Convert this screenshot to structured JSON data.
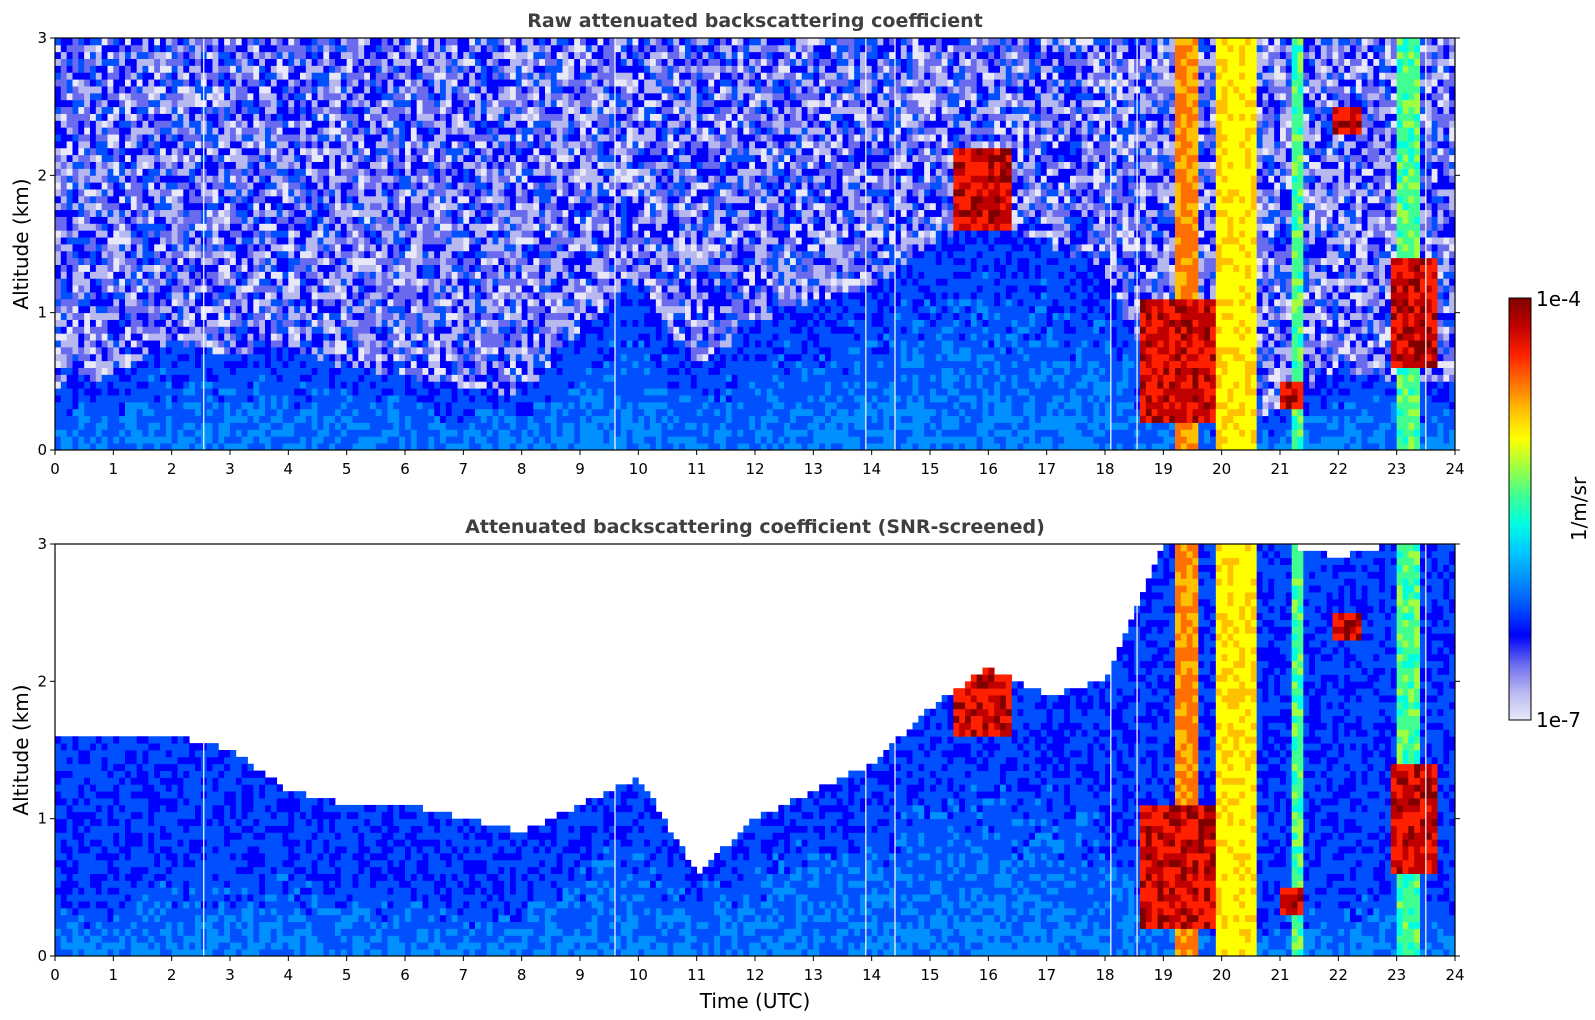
{
  "colors": {
    "colormap": [
      "#e8e8f8",
      "#b8b8f0",
      "#6a6aee",
      "#0000ff",
      "#0050ff",
      "#0090ff",
      "#00c8ff",
      "#00ffe0",
      "#40ff90",
      "#a0ff40",
      "#ffff00",
      "#ffc000",
      "#ff7000",
      "#ff2000",
      "#c00000",
      "#800000"
    ],
    "background": "#ffffff",
    "title": "#3f3f3f"
  },
  "colorbar": {
    "max_label": "1e-4",
    "min_label": "1e-7",
    "units_label": "1/m/sr",
    "scale": "log",
    "range": [
      1e-07,
      0.0001
    ]
  },
  "chart_data": [
    {
      "type": "heatmap",
      "title": "Raw attenuated backscattering coefficient",
      "xlabel": "",
      "ylabel": "Altitude (km)",
      "xlim": [
        0,
        24
      ],
      "ylim": [
        0,
        3
      ],
      "xticks": [
        "0",
        "1",
        "2",
        "3",
        "4",
        "5",
        "6",
        "7",
        "8",
        "9",
        "10",
        "11",
        "12",
        "13",
        "14",
        "15",
        "16",
        "17",
        "18",
        "19",
        "20",
        "21",
        "22",
        "23",
        "24"
      ],
      "yticks": [
        "0",
        "1",
        "2",
        "3"
      ],
      "x_unit": "Time (UTC) hours",
      "y_unit": "km",
      "screened": false,
      "boundary_layer_top_km": [
        [
          0,
          0.45
        ],
        [
          1,
          0.55
        ],
        [
          2,
          0.8
        ],
        [
          3,
          0.7
        ],
        [
          4,
          0.75
        ],
        [
          5,
          0.6
        ],
        [
          6,
          0.55
        ],
        [
          7,
          0.45
        ],
        [
          8,
          0.4
        ],
        [
          9,
          0.9
        ],
        [
          10,
          1.2
        ],
        [
          11,
          0.6
        ],
        [
          12,
          0.9
        ],
        [
          13,
          1.1
        ],
        [
          14,
          1.2
        ],
        [
          15,
          1.5
        ],
        [
          16,
          1.7
        ],
        [
          17,
          1.5
        ],
        [
          18,
          1.3
        ],
        [
          19,
          0.3
        ],
        [
          20,
          0.2
        ],
        [
          21,
          0.3
        ],
        [
          22,
          0.6
        ],
        [
          23,
          0.5
        ],
        [
          24,
          0.5
        ]
      ],
      "cloud_layers": [
        {
          "t": [
            15.4,
            16.4
          ],
          "alt_km": [
            1.6,
            2.2
          ],
          "level": "high"
        },
        {
          "t": [
            18.6,
            19.9
          ],
          "alt_km": [
            0.2,
            1.1
          ],
          "level": "high"
        },
        {
          "t": [
            21.0,
            21.4
          ],
          "alt_km": [
            0.3,
            0.5
          ],
          "level": "high"
        },
        {
          "t": [
            21.9,
            22.4
          ],
          "alt_km": [
            2.3,
            2.5
          ],
          "level": "high"
        },
        {
          "t": [
            22.9,
            23.7
          ],
          "alt_km": [
            0.6,
            1.4
          ],
          "level": "high"
        }
      ],
      "precipitation_columns": [
        {
          "t": [
            19.2,
            19.6
          ],
          "level": "very-high"
        },
        {
          "t": [
            19.9,
            20.6
          ],
          "level": "high"
        },
        {
          "t": [
            21.2,
            21.4
          ],
          "level": "medium"
        },
        {
          "t": [
            23.0,
            23.4
          ],
          "level": "medium"
        }
      ],
      "data_gaps_utc": [
        2.55,
        9.6,
        13.9,
        14.4,
        18.1,
        18.55,
        23.5
      ]
    },
    {
      "type": "heatmap",
      "title": "Attenuated backscattering coefficient (SNR-screened)",
      "xlabel": "Time (UTC)",
      "ylabel": "Altitude (km)",
      "xlim": [
        0,
        24
      ],
      "ylim": [
        0,
        3
      ],
      "xticks": [
        "0",
        "1",
        "2",
        "3",
        "4",
        "5",
        "6",
        "7",
        "8",
        "9",
        "10",
        "11",
        "12",
        "13",
        "14",
        "15",
        "16",
        "17",
        "18",
        "19",
        "20",
        "21",
        "22",
        "23",
        "24"
      ],
      "yticks": [
        "0",
        "1",
        "2",
        "3"
      ],
      "x_unit": "Time (UTC) hours",
      "y_unit": "km",
      "screened": true,
      "screen_top_km": [
        [
          0,
          1.6
        ],
        [
          1,
          1.6
        ],
        [
          2,
          1.6
        ],
        [
          3,
          1.5
        ],
        [
          4,
          1.2
        ],
        [
          5,
          1.1
        ],
        [
          6,
          1.1
        ],
        [
          7,
          1.0
        ],
        [
          8,
          0.9
        ],
        [
          9,
          1.1
        ],
        [
          10,
          1.3
        ],
        [
          11,
          0.6
        ],
        [
          12,
          1.0
        ],
        [
          13,
          1.2
        ],
        [
          14,
          1.4
        ],
        [
          15,
          1.8
        ],
        [
          16,
          2.1
        ],
        [
          17,
          1.9
        ],
        [
          18,
          2.0
        ],
        [
          19,
          3.0
        ],
        [
          20,
          3.0
        ],
        [
          21,
          3.0
        ],
        [
          22,
          2.9
        ],
        [
          23,
          3.0
        ],
        [
          24,
          3.0
        ]
      ],
      "data_gaps_utc": [
        2.55,
        9.6,
        13.9,
        14.4,
        18.1,
        18.55,
        23.5
      ]
    }
  ]
}
